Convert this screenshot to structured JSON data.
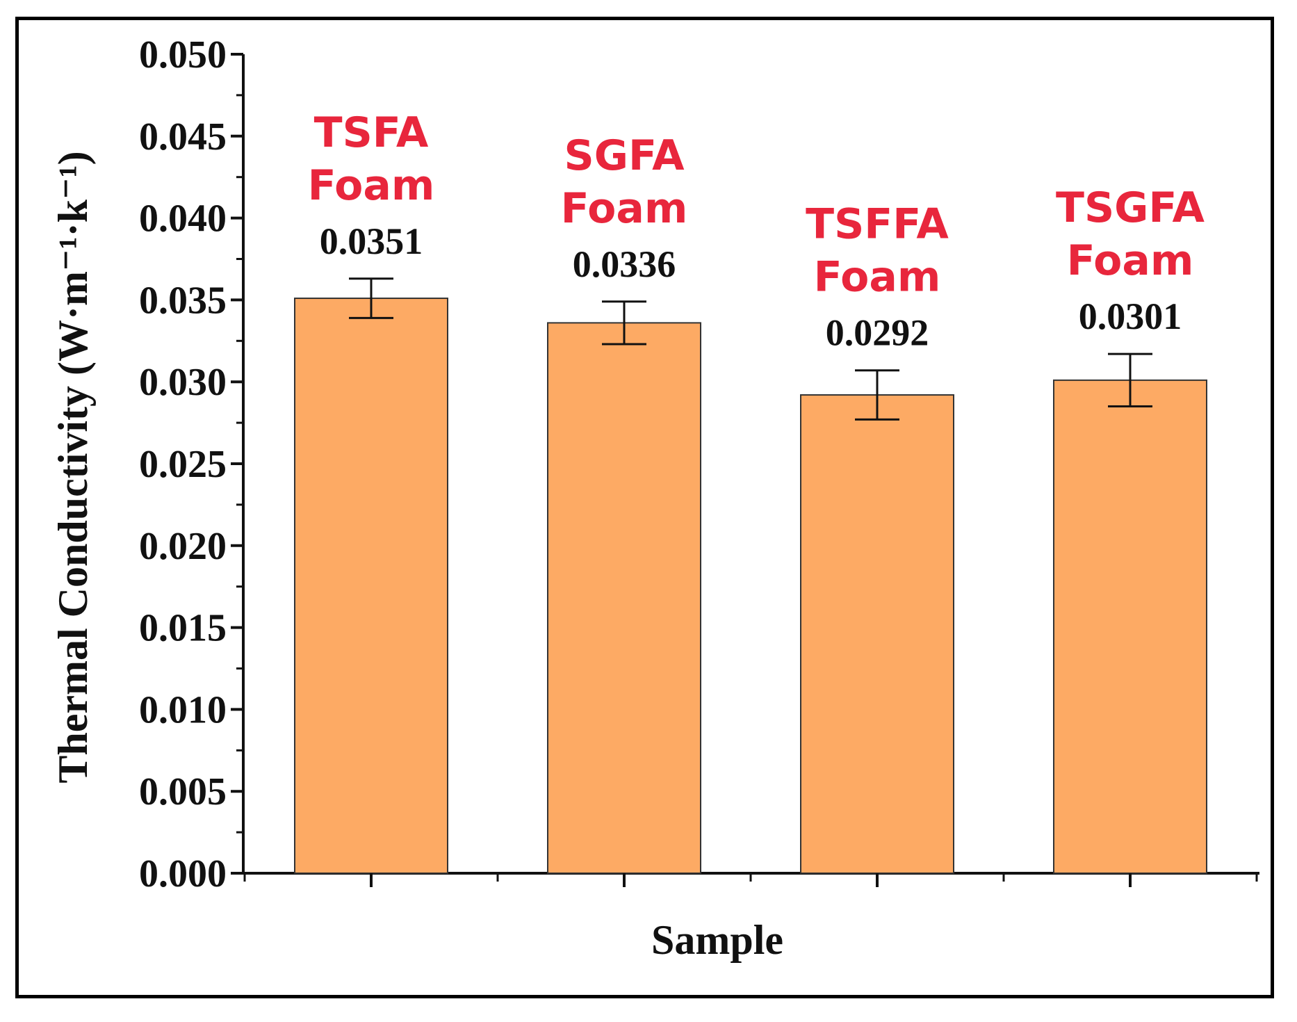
{
  "chart_data": {
    "type": "bar",
    "title": "",
    "xlabel": "Sample",
    "ylabel": "Thermal Conductivity (W·m⁻¹·k⁻¹)",
    "ylim": [
      0,
      0.05
    ],
    "yticks": [
      "0.000",
      "0.005",
      "0.010",
      "0.015",
      "0.020",
      "0.025",
      "0.030",
      "0.035",
      "0.040",
      "0.045",
      "0.050"
    ],
    "grid": false,
    "categories": [
      [
        "TSFA",
        "Foam"
      ],
      [
        "SGFA",
        "Foam"
      ],
      [
        "TSFFA",
        "Foam"
      ],
      [
        "TSGFA",
        "Foam"
      ]
    ],
    "values": [
      0.0351,
      0.0336,
      0.0292,
      0.0301
    ],
    "value_labels": [
      "0.0351",
      "0.0336",
      "0.0292",
      "0.0301"
    ],
    "errors": [
      0.0012,
      0.0013,
      0.0015,
      0.0016
    ],
    "bar_color": "#FDAA64",
    "bar_edge_color": "#333333",
    "category_label_color": "#E8263C"
  }
}
